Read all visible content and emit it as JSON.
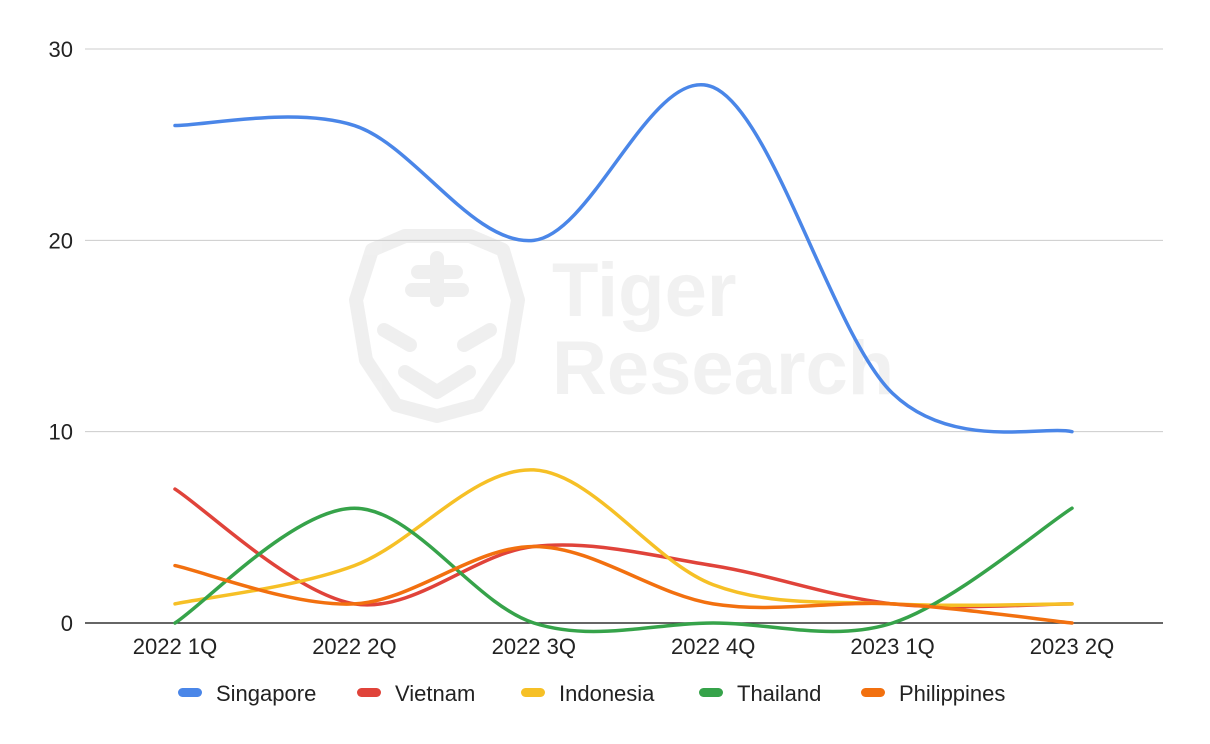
{
  "watermark": {
    "line1": "Tiger",
    "line2": "Research"
  },
  "chart_data": {
    "type": "line",
    "smooth": true,
    "categories": [
      "2022 1Q",
      "2022 2Q",
      "2022 3Q",
      "2022 4Q",
      "2023 1Q",
      "2023 2Q"
    ],
    "ylim": [
      0,
      30
    ],
    "yticks": [
      0,
      10,
      20,
      30
    ],
    "grid": true,
    "legend_position": "bottom",
    "series": [
      {
        "name": "Singapore",
        "color": "#4a86e8",
        "values": [
          26,
          26,
          20,
          28,
          12,
          10
        ]
      },
      {
        "name": "Vietnam",
        "color": "#e0433a",
        "values": [
          7,
          1,
          4,
          3,
          1,
          1
        ]
      },
      {
        "name": "Indonesia",
        "color": "#f6c026",
        "values": [
          1,
          3,
          8,
          2,
          1,
          1
        ]
      },
      {
        "name": "Thailand",
        "color": "#36a34a",
        "values": [
          0,
          6,
          0,
          0,
          0,
          6
        ]
      },
      {
        "name": "Philippines",
        "color": "#f2700f",
        "values": [
          3,
          1,
          4,
          1,
          1,
          0
        ]
      }
    ]
  }
}
